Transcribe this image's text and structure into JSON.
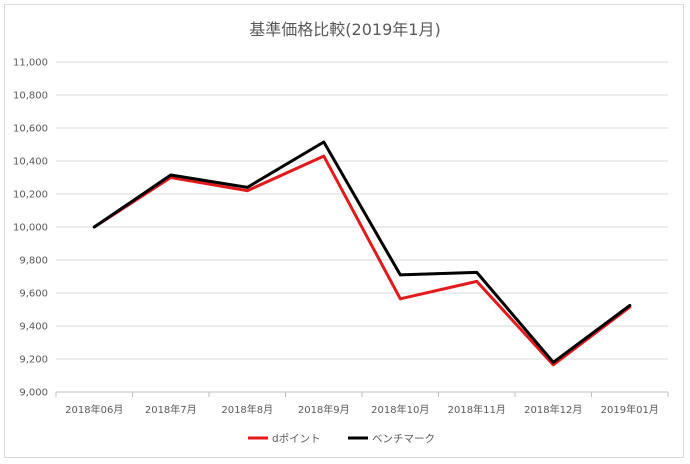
{
  "chart_data": {
    "type": "line",
    "title": "基準価格比較(2019年1月)",
    "xlabel": "",
    "ylabel": "",
    "categories": [
      "2018年06月",
      "2018年7月",
      "2018年8月",
      "2018年9月",
      "2018年10月",
      "2018年11月",
      "2018年12月",
      "2019年01月"
    ],
    "ylim": [
      9000,
      11000
    ],
    "yticks": [
      9000,
      9200,
      9400,
      9600,
      9800,
      10000,
      10200,
      10400,
      10600,
      10800,
      11000
    ],
    "ytick_labels": [
      "9,000",
      "9,200",
      "9,400",
      "9,600",
      "9,800",
      "10,000",
      "10,200",
      "10,400",
      "10,600",
      "10,800",
      "11,000"
    ],
    "grid": true,
    "legend_position": "bottom",
    "series": [
      {
        "name": "dポイント",
        "color": "#e31a1c",
        "values": [
          10000,
          10300,
          10220,
          10430,
          9565,
          9670,
          9165,
          9515
        ]
      },
      {
        "name": "ベンチマーク",
        "color": "#000000",
        "values": [
          10000,
          10315,
          10240,
          10515,
          9710,
          9725,
          9180,
          9525
        ]
      }
    ]
  }
}
